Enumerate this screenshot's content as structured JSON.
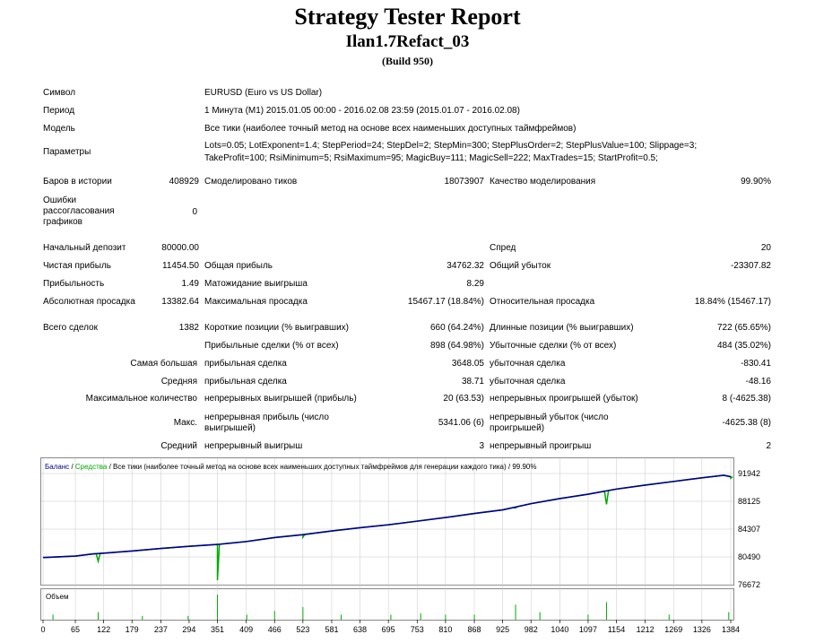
{
  "title": "Strategy Tester Report",
  "ea_name": "Ilan1.7Refact_03",
  "build": "(Build 950)",
  "info": {
    "symbol_label": "Символ",
    "symbol_value": "EURUSD (Euro vs US Dollar)",
    "period_label": "Период",
    "period_value": "1 Минута (M1) 2015.01.05 00:00 - 2016.02.08 23:59 (2015.01.07 - 2016.02.08)",
    "model_label": "Модель",
    "model_value": "Все тики (наиболее точный метод на основе всех наименьших доступных таймфреймов)",
    "params_label": "Параметры",
    "params_line1": "Lots=0.05; LotExponent=1.4; StepPeriod=24; StepDel=2; StepMin=300; StepPlusOrder=2; StepPlusValue=100; Slippage=3;",
    "params_line2": "TakeProfit=100; RsiMinimum=5; RsiMaximum=95; MagicBuy=111; MagicSell=222; MaxTrades=15; StartProfit=0.5;"
  },
  "stats": {
    "bars_label": "Баров в истории",
    "bars_value": "408929",
    "ticks_label": "Смоделировано тиков",
    "ticks_value": "18073907",
    "quality_label": "Качество моделирования",
    "quality_value": "99.90%",
    "errors_label": "Ошибки рассогласования графиков",
    "errors_value": "0",
    "deposit_label": "Начальный депозит",
    "deposit_value": "80000.00",
    "spread_label": "Спред",
    "spread_value": "20",
    "net_label": "Чистая прибыль",
    "net_value": "11454.50",
    "gross_profit_label": "Общая прибыль",
    "gross_profit_value": "34762.32",
    "gross_loss_label": "Общий убыток",
    "gross_loss_value": "-23307.82",
    "pf_label": "Прибыльность",
    "pf_value": "1.49",
    "payoff_label": "Матожидание выигрыша",
    "payoff_value": "8.29",
    "abs_dd_label": "Абсолютная просадка",
    "abs_dd_value": "13382.64",
    "max_dd_label": "Максимальная просадка",
    "max_dd_value": "15467.17 (18.84%)",
    "rel_dd_label": "Относительная просадка",
    "rel_dd_value": "18.84% (15467.17)",
    "total_label": "Всего сделок",
    "total_value": "1382",
    "short_label": "Короткие позиции (% выигравших)",
    "short_value": "660 (64.24%)",
    "long_label": "Длинные позиции (% выигравших)",
    "long_value": "722 (65.65%)",
    "profit_trades_label": "Прибыльные сделки (% от всех)",
    "profit_trades_value": "898 (64.98%)",
    "loss_trades_label": "Убыточные сделки (% от всех)",
    "loss_trades_value": "484 (35.02%)",
    "largest_label": "Самая большая",
    "largest_profit_label": "прибыльная сделка",
    "largest_profit_value": "3648.05",
    "largest_loss_label": "убыточная сделка",
    "largest_loss_value": "-830.41",
    "average_label": "Средняя",
    "average_profit_label": "прибыльная сделка",
    "average_profit_value": "38.71",
    "average_loss_label": "убыточная сделка",
    "average_loss_value": "-48.16",
    "maxcount_label": "Максимальное количество",
    "maxcount_wins_label": "непрерывных выигрышей (прибыль)",
    "maxcount_wins_value": "20 (63.53)",
    "maxcount_losses_label": "непрерывных проигрышей (убыток)",
    "maxcount_losses_value": "8 (-4625.38)",
    "max_label": "Макс.",
    "max_profit_label": "непрерывная прибыль (число выигрышей)",
    "max_profit_value": "5341.06 (6)",
    "max_loss_label": "непрерывный убыток (число проигрышей)",
    "max_loss_value": "-4625.38 (8)",
    "avg_label": "Средний",
    "avg_wins_label": "непрерывный выигрыш",
    "avg_wins_value": "3",
    "avg_losses_label": "непрерывный проигрыш",
    "avg_losses_value": "2"
  },
  "chart_data": {
    "type": "line",
    "legend": {
      "balance": "Баланс",
      "sep1": " / ",
      "equity": "Средства",
      "sep2": " / ",
      "model": "Все тики (наиболее точный метод на основе всех наименьших доступных таймфреймов для генерации каждого тика)",
      "sep3": " / ",
      "quality": "99.90%"
    },
    "volume_label": "Объем",
    "y_ticks": [
      "91942",
      "88125",
      "84307",
      "80490",
      "76672"
    ],
    "x_ticks": [
      "0",
      "65",
      "122",
      "179",
      "237",
      "294",
      "351",
      "409",
      "466",
      "523",
      "581",
      "638",
      "695",
      "753",
      "810",
      "868",
      "925",
      "982",
      "1040",
      "1097",
      "1154",
      "1212",
      "1269",
      "1326",
      "1384"
    ],
    "ylim": [
      76672,
      91942
    ],
    "xlim": [
      0,
      1384
    ],
    "balance": [
      [
        0,
        80400
      ],
      [
        65,
        80600
      ],
      [
        100,
        80900
      ],
      [
        122,
        81000
      ],
      [
        179,
        81300
      ],
      [
        237,
        81650
      ],
      [
        294,
        81950
      ],
      [
        351,
        82200
      ],
      [
        409,
        82600
      ],
      [
        466,
        83150
      ],
      [
        523,
        83550
      ],
      [
        581,
        84050
      ],
      [
        638,
        84500
      ],
      [
        695,
        84900
      ],
      [
        753,
        85400
      ],
      [
        810,
        85900
      ],
      [
        868,
        86450
      ],
      [
        925,
        86950
      ],
      [
        982,
        87800
      ],
      [
        1040,
        88500
      ],
      [
        1097,
        89100
      ],
      [
        1154,
        89800
      ],
      [
        1212,
        90350
      ],
      [
        1269,
        90850
      ],
      [
        1326,
        91350
      ],
      [
        1370,
        91700
      ],
      [
        1384,
        91500
      ]
    ],
    "equity_dips": [
      [
        111,
        79900
      ],
      [
        351,
        77300
      ],
      [
        466,
        83150
      ],
      [
        523,
        83200
      ],
      [
        951,
        87200
      ],
      [
        1134,
        87700
      ],
      [
        1384,
        91300
      ]
    ],
    "colors": {
      "balance": "#00008b",
      "equity": "#00aa00",
      "volume": "#00aa00",
      "grid": "#c8c8c8"
    }
  }
}
